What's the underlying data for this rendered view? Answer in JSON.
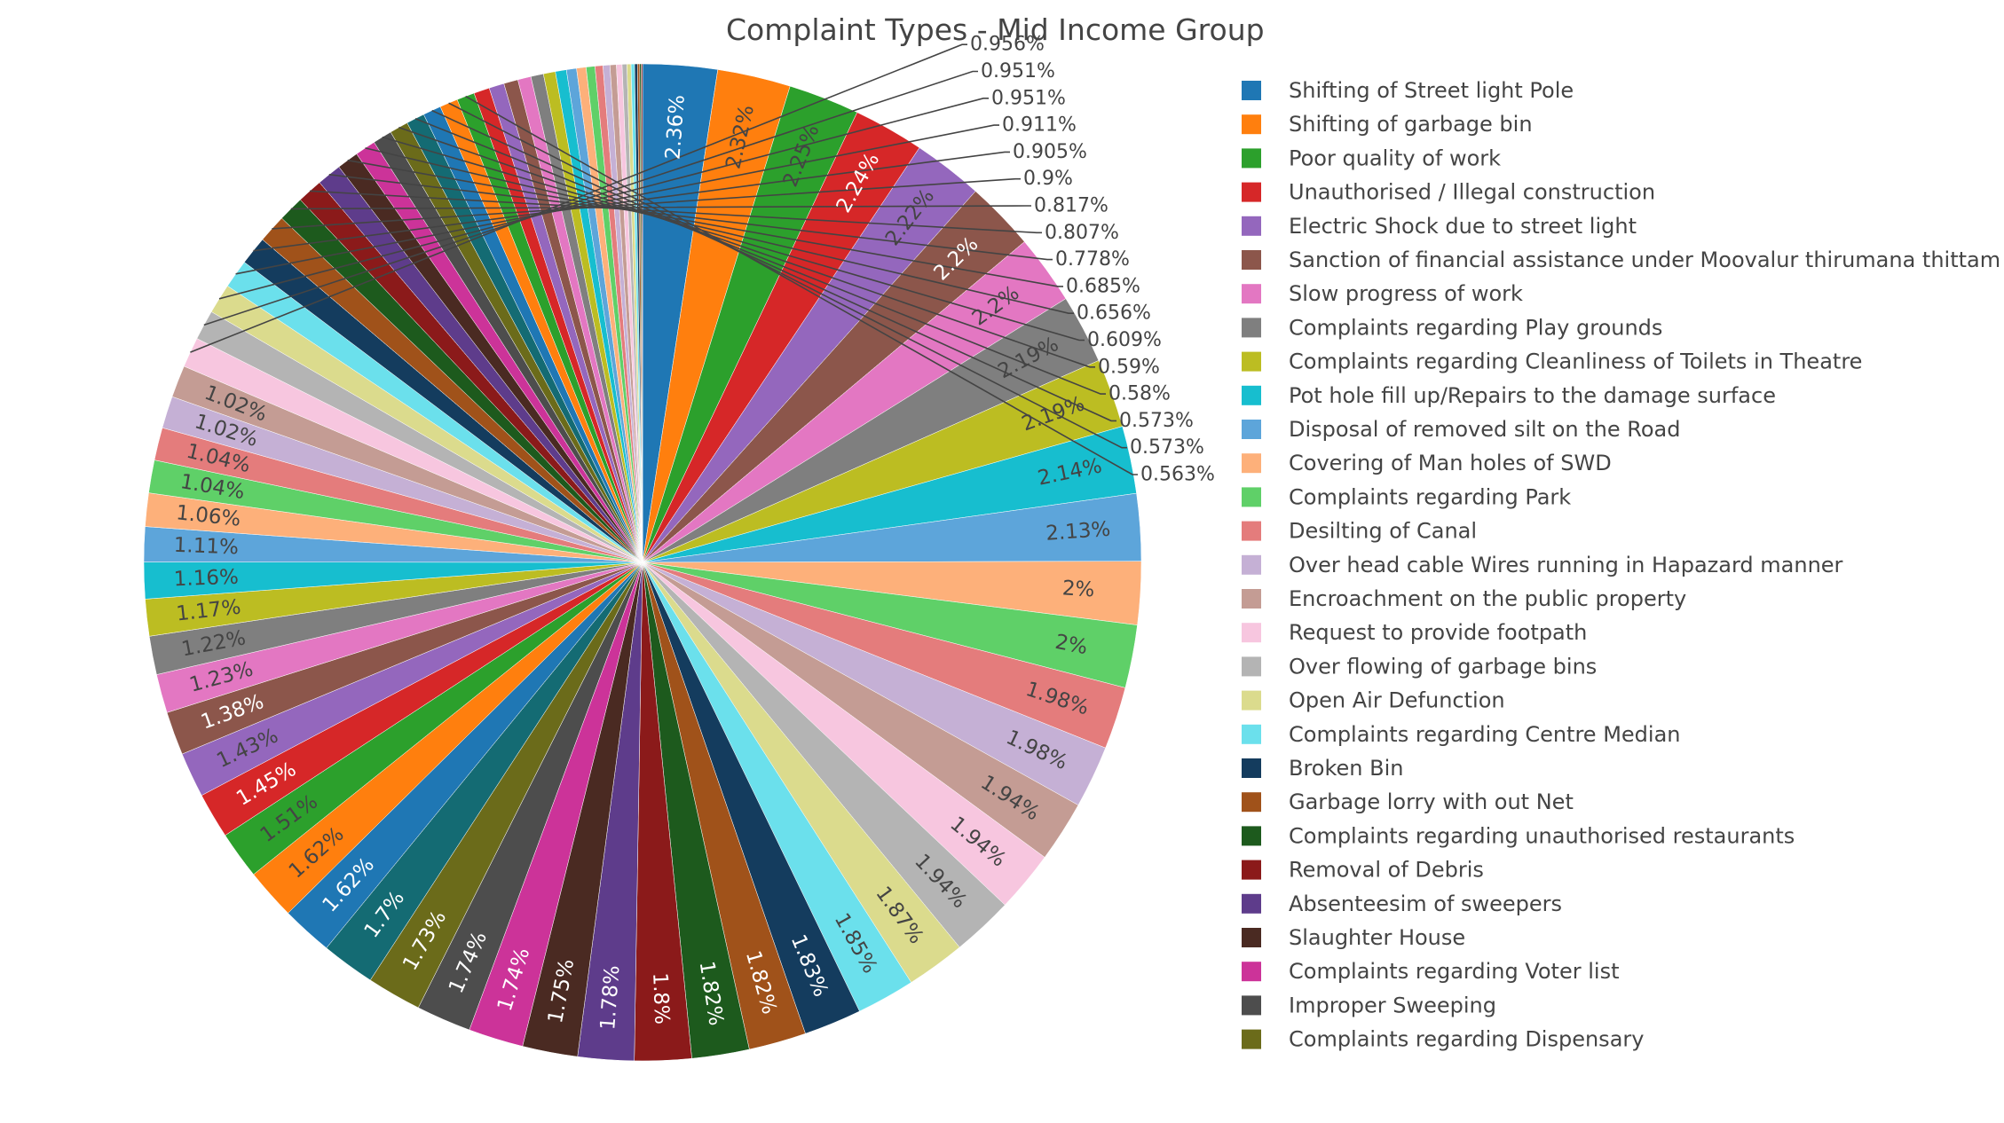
{
  "chart_data": {
    "type": "pie",
    "title": "Complaint Types - Mid Income Group",
    "legend_position": "right",
    "text_labels": [
      "2.36%",
      "2.32%",
      "2.25%",
      "2.24%",
      "2.22%",
      "2.2%",
      "2.2%",
      "2.19%",
      "2.19%",
      "2.14%",
      "2.13%",
      "2%",
      "2%",
      "1.98%",
      "1.98%",
      "1.94%",
      "1.94%",
      "1.94%",
      "1.87%",
      "1.85%",
      "1.83%",
      "1.82%",
      "1.82%",
      "1.8%",
      "1.78%",
      "1.75%",
      "1.74%",
      "1.74%",
      "1.73%",
      "1.7%",
      "1.62%",
      "1.62%",
      "1.51%",
      "1.45%",
      "1.43%",
      "1.38%",
      "1.23%",
      "1.22%",
      "1.17%",
      "1.16%",
      "1.11%",
      "1.06%",
      "1.04%",
      "1.04%",
      "1.02%",
      "1.02%",
      "0.956%",
      "0.951%",
      "0.951%",
      "0.911%",
      "0.905%",
      "0.9%",
      "0.817%",
      "0.807%",
      "0.778%",
      "0.685%",
      "0.656%",
      "0.609%",
      "0.59%",
      "0.58%",
      "0.573%",
      "0.573%",
      "0.563%"
    ],
    "values": [
      2.36,
      2.32,
      2.25,
      2.24,
      2.22,
      2.2,
      2.2,
      2.19,
      2.19,
      2.14,
      2.13,
      2.0,
      2.0,
      1.98,
      1.98,
      1.94,
      1.94,
      1.94,
      1.87,
      1.85,
      1.83,
      1.82,
      1.82,
      1.8,
      1.78,
      1.75,
      1.74,
      1.74,
      1.73,
      1.7,
      1.62,
      1.62,
      1.51,
      1.45,
      1.43,
      1.38,
      1.23,
      1.22,
      1.17,
      1.16,
      1.11,
      1.06,
      1.04,
      1.04,
      1.02,
      1.02,
      0.956,
      0.951,
      0.951,
      0.911,
      0.905,
      0.9,
      0.817,
      0.807,
      0.778,
      0.685,
      0.656,
      0.609,
      0.59,
      0.58,
      0.573,
      0.573,
      0.563,
      0.5,
      0.48,
      0.45,
      0.42,
      0.4,
      0.38,
      0.35,
      0.32,
      0.3,
      0.28,
      0.25,
      0.22,
      0.2,
      0.18,
      0.15,
      0.13,
      0.11,
      0.09,
      0.07,
      0.05,
      0.04
    ],
    "legend_entries": [
      "Shifting of Street light Pole",
      "Shifting of garbage bin",
      "Poor quality of work",
      "Unauthorised / Illegal construction",
      "Electric Shock due to street light",
      "Sanction of financial assistance under Moovalur thirumana thittam",
      "Slow progress of work",
      "Complaints regarding Play grounds",
      "Complaints regarding  Cleanliness of Toilets in Theatre",
      "Pot hole fill up/Repairs to the damage surface",
      "Disposal of removed silt on the Road",
      "Covering of Man holes of SWD",
      "Complaints regarding Park",
      "Desilting of Canal",
      "Over head cable Wires running in Hapazard manner",
      "Encroachment on the public property",
      "Request to provide footpath",
      "Over flowing of garbage bins",
      "Open Air Defunction",
      "Complaints regarding Centre Median",
      "Broken Bin",
      "Garbage lorry with out Net",
      "Complaints regarding unauthorised restaurants",
      "Removal of Debris",
      "Absenteesim of sweepers",
      "Slaughter House",
      "Complaints regarding Voter list",
      "Improper Sweeping",
      "Complaints regarding  Dispensary"
    ],
    "colors": [
      "#1f77b4",
      "#ff7f0e",
      "#2ca02c",
      "#d62728",
      "#9467bd",
      "#8c564b",
      "#e377c2",
      "#7f7f7f",
      "#bcbd22",
      "#17becf",
      "#5da5da",
      "#fdb07a",
      "#5fd068",
      "#e47c7c",
      "#c5b0d5",
      "#c49c94",
      "#f7c6df",
      "#b4b4b4",
      "#dbdb8d",
      "#6be0ec",
      "#143c5e",
      "#a0521a",
      "#1d5a1d",
      "#8b1a1a",
      "#5e3c8b",
      "#4a2a22",
      "#cc3399",
      "#4d4d4d",
      "#6b6b1a",
      "#146b73"
    ],
    "outside_label_color": "#444444",
    "text_color_dark": "#444444",
    "text_color_light": "#ffffff"
  }
}
